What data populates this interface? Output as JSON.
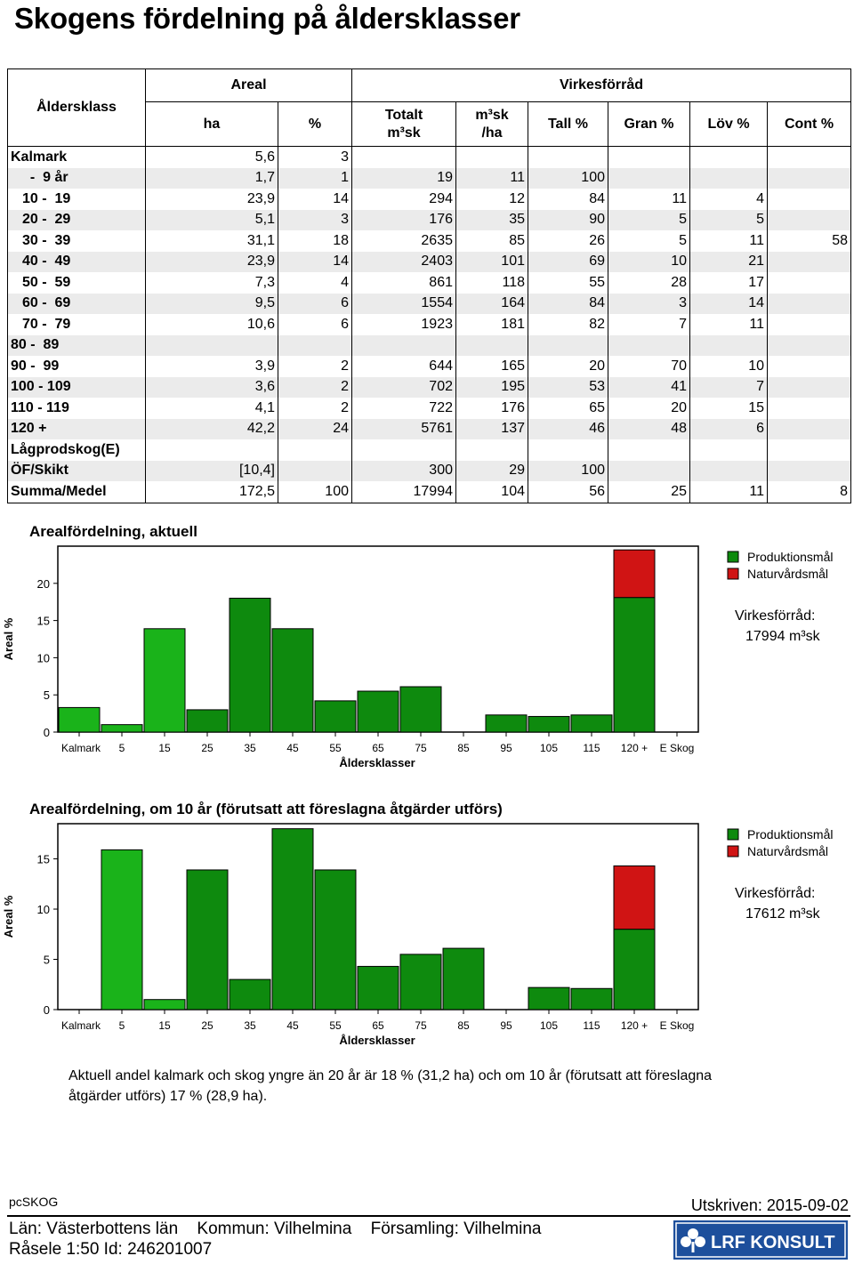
{
  "title": "Skogens fördelning på åldersklasser",
  "table": {
    "col_alder": "Åldersklass",
    "col_areal": "Areal",
    "col_ha": "ha",
    "col_pct": "%",
    "col_virke": "Virkesförråd",
    "col_totalt": "Totalt",
    "col_totalt_unit": "m³sk",
    "col_m3ha": "m³sk",
    "col_m3ha_unit": "/ha",
    "col_tall": "Tall %",
    "col_gran": "Gran %",
    "col_lov": "Löv %",
    "col_cont": "Cont %",
    "rows": [
      [
        "Kalmark",
        "5,6",
        "3",
        "",
        "",
        "",
        "",
        "",
        ""
      ],
      [
        "  -  9 år",
        "1,7",
        "1",
        "19",
        "11",
        "100",
        "",
        "",
        ""
      ],
      [
        "10 -  19",
        "23,9",
        "14",
        "294",
        "12",
        "84",
        "11",
        "4",
        ""
      ],
      [
        "20 -  29",
        "5,1",
        "3",
        "176",
        "35",
        "90",
        "5",
        "5",
        ""
      ],
      [
        "30 -  39",
        "31,1",
        "18",
        "2635",
        "85",
        "26",
        "5",
        "11",
        "58"
      ],
      [
        "40 -  49",
        "23,9",
        "14",
        "2403",
        "101",
        "69",
        "10",
        "21",
        ""
      ],
      [
        "50 -  59",
        "7,3",
        "4",
        "861",
        "118",
        "55",
        "28",
        "17",
        ""
      ],
      [
        "60 -  69",
        "9,5",
        "6",
        "1554",
        "164",
        "84",
        "3",
        "14",
        ""
      ],
      [
        "70 -  79",
        "10,6",
        "6",
        "1923",
        "181",
        "82",
        "7",
        "11",
        ""
      ],
      [
        "80 -  89",
        "",
        "",
        "",
        "",
        "",
        "",
        "",
        ""
      ],
      [
        "90 -  99",
        "3,9",
        "2",
        "644",
        "165",
        "20",
        "70",
        "10",
        ""
      ],
      [
        "100 - 109",
        "3,6",
        "2",
        "702",
        "195",
        "53",
        "41",
        "7",
        ""
      ],
      [
        "110 - 119",
        "4,1",
        "2",
        "722",
        "176",
        "65",
        "20",
        "15",
        ""
      ],
      [
        "120 +",
        "42,2",
        "24",
        "5761",
        "137",
        "46",
        "48",
        "6",
        ""
      ],
      [
        "Lågprodskog(E)",
        "",
        "",
        "",
        "",
        "",
        "",
        "",
        ""
      ],
      [
        "ÖF/Skikt",
        "[10,4]",
        "",
        "300",
        "29",
        "100",
        "",
        "",
        ""
      ],
      [
        "Summa/Medel",
        "172,5",
        "100",
        "17994",
        "104",
        "56",
        "25",
        "11",
        "8"
      ]
    ]
  },
  "chart_data": [
    {
      "type": "bar",
      "title": "Arealfördelning, aktuell",
      "xlabel": "Åldersklasser",
      "ylabel": "Areal %",
      "ylim": [
        0,
        25
      ],
      "yticks": [
        0,
        5,
        10,
        15,
        20
      ],
      "categories": [
        "Kalmark",
        "5",
        "15",
        "25",
        "35",
        "45",
        "55",
        "65",
        "75",
        "85",
        "95",
        "105",
        "115",
        "120 +",
        "E Skog"
      ],
      "series": [
        {
          "name": "Produktionsmål",
          "values": [
            3.3,
            1.0,
            13.9,
            3.0,
            18.0,
            13.9,
            4.2,
            5.5,
            6.1,
            0,
            2.3,
            2.1,
            2.3,
            18.1,
            0
          ]
        },
        {
          "name": "Naturvårdsmål",
          "values": [
            0,
            0,
            0,
            0,
            0,
            0,
            0,
            0,
            0,
            0,
            0,
            0,
            0,
            6.4,
            0
          ]
        }
      ],
      "bar_colors": [
        "#1ab31a",
        "#1ab31a",
        "#1ab31a",
        "#0e8a0e",
        "#0e8a0e",
        "#0e8a0e",
        "#0e8a0e",
        "#0e8a0e",
        "#0e8a0e",
        "#0e8a0e",
        "#0e8a0e",
        "#0e8a0e",
        "#0e8a0e",
        "#0e8a0e",
        "#0e8a0e"
      ],
      "virkes_label": "Virkesförråd:",
      "virkes_value": "17994 m³sk"
    },
    {
      "type": "bar",
      "title": "Arealfördelning, om 10 år (förutsatt att föreslagna åtgärder utförs)",
      "xlabel": "Åldersklasser",
      "ylabel": "Areal %",
      "ylim": [
        0,
        18.5
      ],
      "yticks": [
        0,
        5,
        10,
        15
      ],
      "categories": [
        "Kalmark",
        "5",
        "15",
        "25",
        "35",
        "45",
        "55",
        "65",
        "75",
        "85",
        "95",
        "105",
        "115",
        "120 +",
        "E Skog"
      ],
      "series": [
        {
          "name": "Produktionsmål",
          "values": [
            0,
            15.9,
            1.0,
            13.9,
            3.0,
            18.0,
            13.9,
            4.3,
            5.5,
            6.1,
            0,
            2.2,
            2.1,
            8.0,
            0
          ]
        },
        {
          "name": "Naturvårdsmål",
          "values": [
            0,
            0,
            0,
            0,
            0,
            0,
            0,
            0,
            0,
            0,
            0,
            0,
            0,
            6.3,
            0
          ]
        }
      ],
      "bar_colors": [
        "#1ab31a",
        "#1ab31a",
        "#1ab31a",
        "#0e8a0e",
        "#0e8a0e",
        "#0e8a0e",
        "#0e8a0e",
        "#0e8a0e",
        "#0e8a0e",
        "#0e8a0e",
        "#0e8a0e",
        "#0e8a0e",
        "#0e8a0e",
        "#0e8a0e",
        "#0e8a0e"
      ],
      "virkes_label": "Virkesförråd:",
      "virkes_value": "17612 m³sk"
    }
  ],
  "colors": {
    "light_green": "#1ab31a",
    "dark_green": "#0e8a0e",
    "red": "#d01414"
  },
  "summary": "Aktuell andel kalmark och skog yngre än 20 år är 18 % (31,2 ha) och om 10 år (förutsatt att föreslagna åtgärder utförs) 17 % (28,9 ha).",
  "footer": {
    "program": "pcSKOG",
    "printed": "Utskriven: 2015-09-02",
    "lan": "Län: Västerbottens län",
    "kommun": "Kommun: Vilhelmina",
    "forsamling": "Församling: Vilhelmina",
    "rasele": "Råsele 1:50 Id: 246201007",
    "logo_text": "LRF KONSULT"
  }
}
